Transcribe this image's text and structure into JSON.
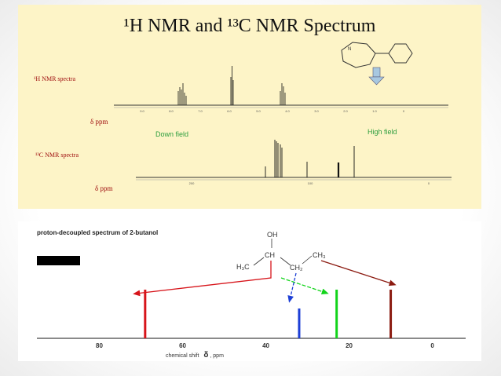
{
  "slide": {
    "title": "¹H NMR and ¹³C NMR Spectrum"
  },
  "top_figure": {
    "h_nmr_label": "¹H NMR spectra",
    "c_nmr_label": "¹³C NMR spectra",
    "delta_label_h": "δ ppm",
    "delta_label_c": "δ ppm",
    "down_field": "Down field",
    "high_field": "High field",
    "h_ticks": [
      "9.0",
      "8.0",
      "7.0",
      "6.0",
      "5.0",
      "4.0",
      "3.0",
      "2.0",
      "1.0",
      "0"
    ],
    "c_ticks": [
      "200",
      "100",
      "0"
    ],
    "colors": {
      "down_field": "#2e9e3f",
      "high_field": "#2e9e3f",
      "arrow": "#a8c8e0"
    }
  },
  "bottom_figure": {
    "title": "proton-decoupled spectrum of 2-butanol",
    "x_axis_label": "chemical shift",
    "x_axis_delta": "δ",
    "x_axis_unit": ", ppm",
    "molecule": {
      "oh": "OH",
      "ch": "CH",
      "h3c": "H₃C",
      "ch2": "CH₂",
      "ch3": "CH₃"
    }
  },
  "chart_data": {
    "type": "bar",
    "title": "proton-decoupled spectrum of 2-butanol",
    "xlabel": "chemical shift δ, ppm",
    "xlim": [
      95,
      -8
    ],
    "x_reversed": true,
    "ticks": [
      "80",
      "60",
      "40",
      "20",
      "0"
    ],
    "peaks": [
      {
        "x": 69,
        "height": 0.62,
        "color": "#d7141a"
      },
      {
        "x": 32,
        "height": 0.38,
        "color": "#1d3fd6"
      },
      {
        "x": 23,
        "height": 0.62,
        "color": "#11d41a"
      },
      {
        "x": 10,
        "height": 0.62,
        "color": "#8b1a10"
      }
    ]
  }
}
